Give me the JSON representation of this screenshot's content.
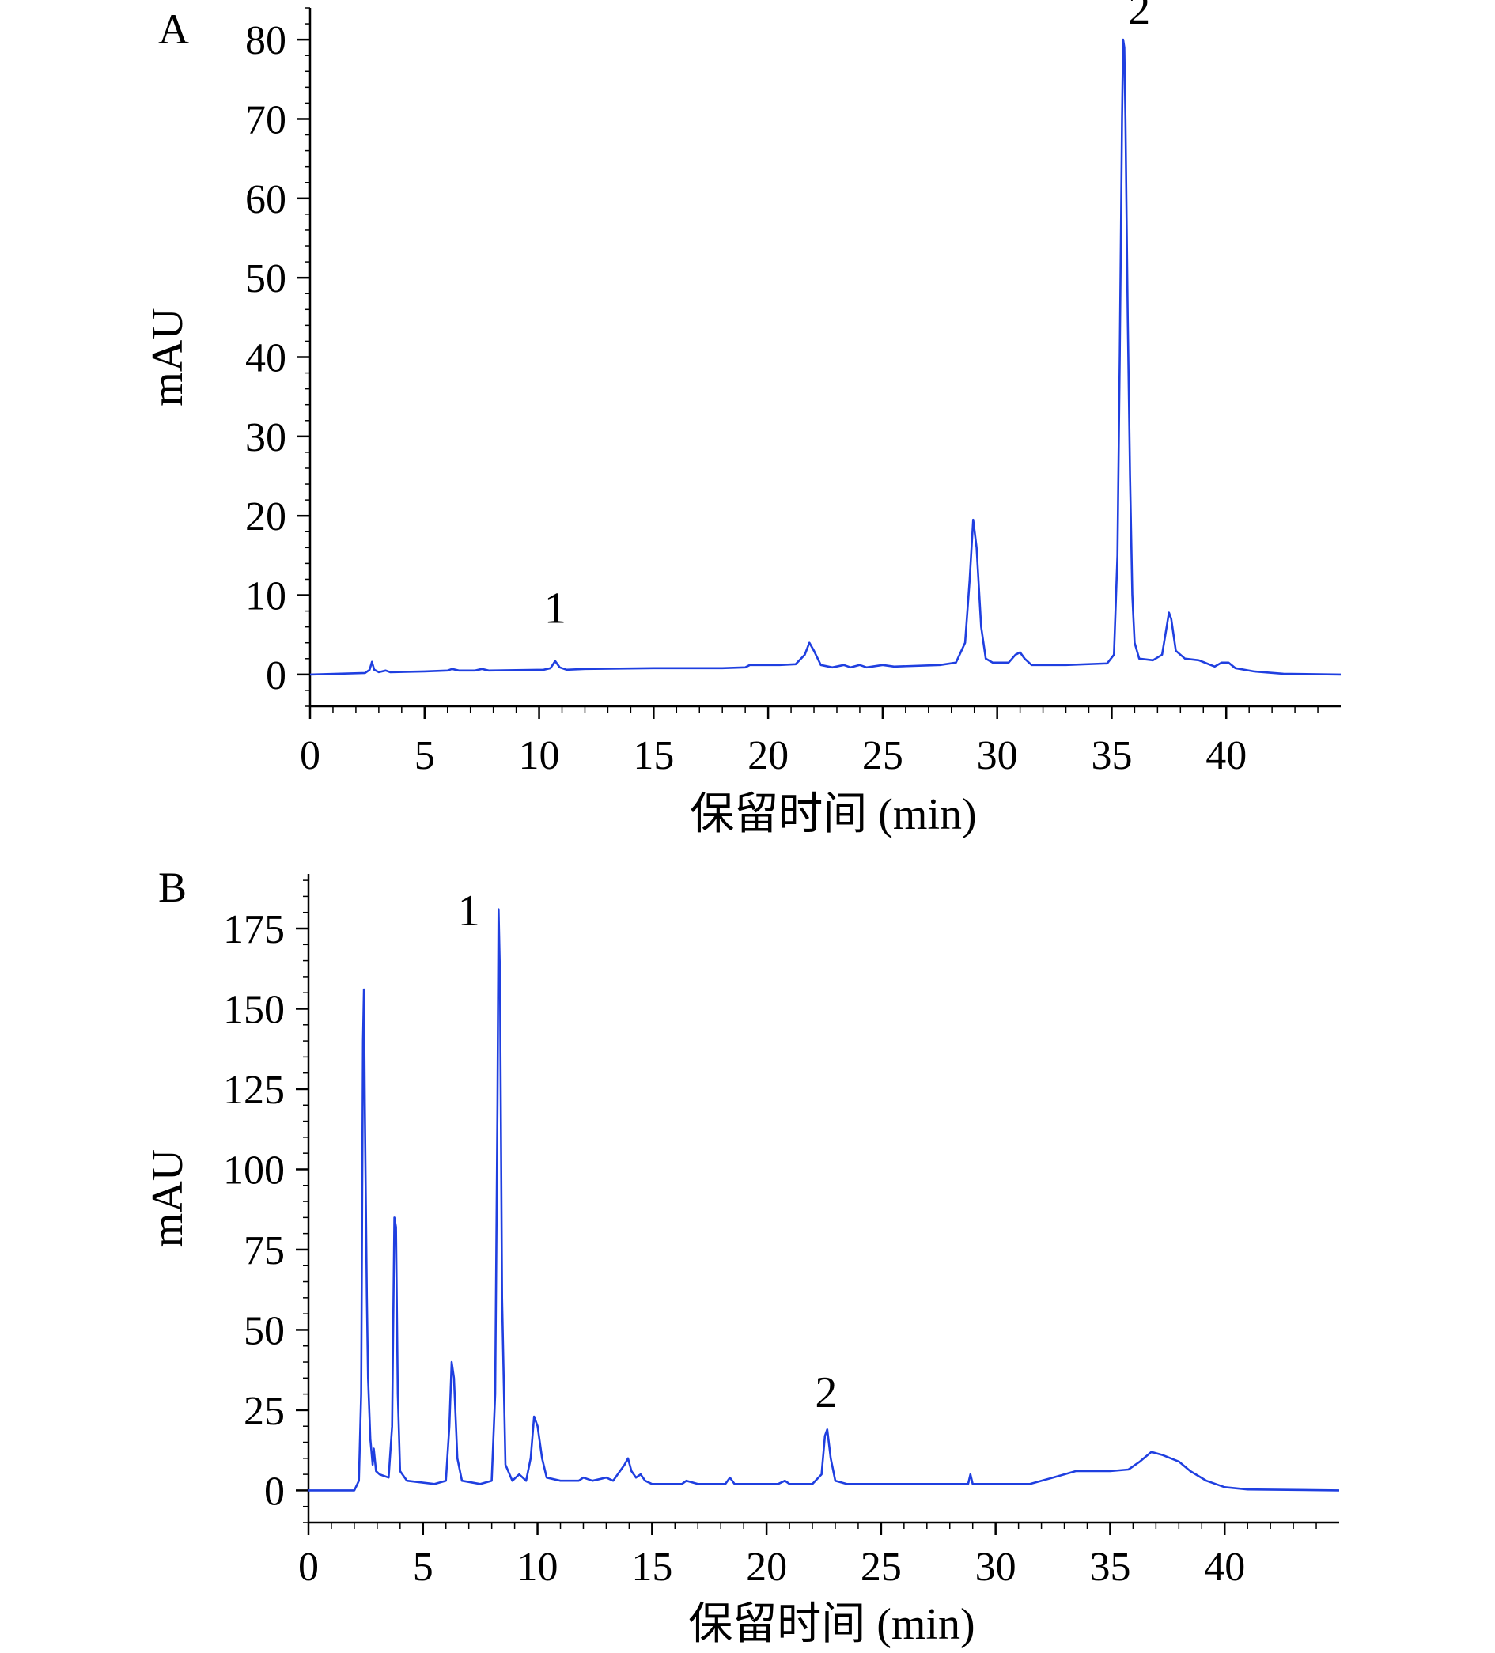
{
  "chart_data": [
    {
      "type": "line",
      "panel_label": "A",
      "xlabel": "保留时间 (min)",
      "ylabel": "mAU",
      "xlim": [
        0,
        45
      ],
      "ylim": [
        -4,
        84
      ],
      "xticks": [
        0,
        5,
        10,
        15,
        20,
        25,
        30,
        35,
        40
      ],
      "yticks": [
        0,
        10,
        20,
        30,
        40,
        50,
        60,
        70,
        80
      ],
      "grid": false,
      "peak_labels": [
        {
          "text": "1",
          "x": 10.7,
          "y": 6.5
        },
        {
          "text": "2",
          "x": 36.2,
          "y": 82
        }
      ],
      "series": [
        {
          "color": "#1f3fe0",
          "points": [
            [
              0,
              0
            ],
            [
              2.4,
              0.2
            ],
            [
              2.6,
              0.6
            ],
            [
              2.7,
              1.6
            ],
            [
              2.8,
              0.6
            ],
            [
              3.0,
              0.3
            ],
            [
              3.3,
              0.5
            ],
            [
              3.5,
              0.3
            ],
            [
              5,
              0.4
            ],
            [
              6.0,
              0.5
            ],
            [
              6.2,
              0.7
            ],
            [
              6.5,
              0.5
            ],
            [
              7.2,
              0.5
            ],
            [
              7.5,
              0.7
            ],
            [
              7.8,
              0.5
            ],
            [
              10.2,
              0.6
            ],
            [
              10.5,
              0.8
            ],
            [
              10.7,
              1.7
            ],
            [
              10.9,
              0.9
            ],
            [
              11.2,
              0.6
            ],
            [
              12,
              0.7
            ],
            [
              15,
              0.8
            ],
            [
              18,
              0.8
            ],
            [
              19,
              0.9
            ],
            [
              19.2,
              1.2
            ],
            [
              20.5,
              1.2
            ],
            [
              21.2,
              1.3
            ],
            [
              21.6,
              2.5
            ],
            [
              21.8,
              4.0
            ],
            [
              22.0,
              3.0
            ],
            [
              22.3,
              1.2
            ],
            [
              22.8,
              0.9
            ],
            [
              23.3,
              1.2
            ],
            [
              23.6,
              0.9
            ],
            [
              24.0,
              1.2
            ],
            [
              24.3,
              0.9
            ],
            [
              25.0,
              1.2
            ],
            [
              25.5,
              1.0
            ],
            [
              27.5,
              1.2
            ],
            [
              28.2,
              1.5
            ],
            [
              28.6,
              4.0
            ],
            [
              28.8,
              12
            ],
            [
              28.95,
              19.5
            ],
            [
              29.1,
              16
            ],
            [
              29.3,
              6
            ],
            [
              29.5,
              2
            ],
            [
              29.8,
              1.5
            ],
            [
              30.5,
              1.5
            ],
            [
              30.8,
              2.5
            ],
            [
              31.0,
              2.8
            ],
            [
              31.2,
              2.0
            ],
            [
              31.5,
              1.2
            ],
            [
              33,
              1.2
            ],
            [
              34.8,
              1.4
            ],
            [
              35.1,
              2.5
            ],
            [
              35.25,
              15
            ],
            [
              35.35,
              40
            ],
            [
              35.45,
              70
            ],
            [
              35.5,
              80
            ],
            [
              35.55,
              79
            ],
            [
              35.6,
              70
            ],
            [
              35.7,
              45
            ],
            [
              35.8,
              25
            ],
            [
              35.9,
              10
            ],
            [
              36.0,
              4
            ],
            [
              36.2,
              2.0
            ],
            [
              36.8,
              1.8
            ],
            [
              37.2,
              2.5
            ],
            [
              37.4,
              6
            ],
            [
              37.5,
              7.8
            ],
            [
              37.6,
              7
            ],
            [
              37.8,
              3
            ],
            [
              38.2,
              2
            ],
            [
              38.8,
              1.8
            ],
            [
              39.5,
              1.0
            ],
            [
              39.8,
              1.5
            ],
            [
              40.1,
              1.5
            ],
            [
              40.4,
              0.8
            ],
            [
              41.2,
              0.4
            ],
            [
              42.5,
              0.1
            ],
            [
              45,
              0.0
            ]
          ]
        }
      ]
    },
    {
      "type": "line",
      "panel_label": "B",
      "xlabel": "保留时间 (min)",
      "ylabel": "mAU",
      "xlim": [
        0,
        45
      ],
      "ylim": [
        -10,
        192
      ],
      "xticks": [
        0,
        5,
        10,
        15,
        20,
        25,
        30,
        35,
        40
      ],
      "yticks": [
        0,
        25,
        50,
        75,
        100,
        125,
        150,
        175
      ],
      "grid": false,
      "peak_labels": [
        {
          "text": "1",
          "x": 7.0,
          "y": 176
        },
        {
          "text": "2",
          "x": 22.6,
          "y": 26
        }
      ],
      "series": [
        {
          "color": "#1f3fe0",
          "points": [
            [
              0,
              0
            ],
            [
              2.0,
              0
            ],
            [
              2.2,
              3
            ],
            [
              2.3,
              30
            ],
            [
              2.38,
              140
            ],
            [
              2.42,
              156
            ],
            [
              2.46,
              120
            ],
            [
              2.55,
              60
            ],
            [
              2.6,
              35
            ],
            [
              2.7,
              16
            ],
            [
              2.8,
              8
            ],
            [
              2.85,
              13
            ],
            [
              2.95,
              6
            ],
            [
              3.1,
              5
            ],
            [
              3.5,
              4
            ],
            [
              3.65,
              20
            ],
            [
              3.75,
              85
            ],
            [
              3.82,
              82
            ],
            [
              3.9,
              30
            ],
            [
              4.0,
              6
            ],
            [
              4.3,
              3
            ],
            [
              5.5,
              2
            ],
            [
              6.0,
              3
            ],
            [
              6.15,
              20
            ],
            [
              6.25,
              40
            ],
            [
              6.35,
              35
            ],
            [
              6.5,
              10
            ],
            [
              6.7,
              3
            ],
            [
              7.5,
              2
            ],
            [
              8.0,
              3
            ],
            [
              8.15,
              30
            ],
            [
              8.25,
              120
            ],
            [
              8.3,
              181
            ],
            [
              8.36,
              160
            ],
            [
              8.45,
              60
            ],
            [
              8.6,
              8
            ],
            [
              8.9,
              3
            ],
            [
              9.2,
              5
            ],
            [
              9.5,
              3
            ],
            [
              9.7,
              10
            ],
            [
              9.85,
              23
            ],
            [
              10.0,
              20
            ],
            [
              10.2,
              10
            ],
            [
              10.4,
              4
            ],
            [
              11,
              3
            ],
            [
              11.8,
              3
            ],
            [
              12,
              4
            ],
            [
              12.4,
              3
            ],
            [
              13,
              4
            ],
            [
              13.3,
              3
            ],
            [
              13.8,
              8
            ],
            [
              13.95,
              10
            ],
            [
              14.1,
              6
            ],
            [
              14.3,
              4
            ],
            [
              14.5,
              5
            ],
            [
              14.7,
              3
            ],
            [
              15,
              2
            ],
            [
              16.3,
              2
            ],
            [
              16.5,
              3
            ],
            [
              17,
              2
            ],
            [
              18.2,
              2
            ],
            [
              18.4,
              4
            ],
            [
              18.6,
              2
            ],
            [
              20.5,
              2
            ],
            [
              20.8,
              3
            ],
            [
              21.0,
              2
            ],
            [
              22.0,
              2
            ],
            [
              22.4,
              5
            ],
            [
              22.55,
              17
            ],
            [
              22.65,
              19
            ],
            [
              22.8,
              10
            ],
            [
              23.0,
              3
            ],
            [
              23.5,
              2
            ],
            [
              25,
              2
            ],
            [
              27,
              2
            ],
            [
              28.8,
              2
            ],
            [
              28.9,
              5
            ],
            [
              29.0,
              2
            ],
            [
              30,
              2
            ],
            [
              31.5,
              2
            ],
            [
              32.0,
              3
            ],
            [
              32.5,
              4
            ],
            [
              33.5,
              6
            ],
            [
              35.0,
              6
            ],
            [
              35.8,
              6.5
            ],
            [
              36.3,
              9
            ],
            [
              36.8,
              12
            ],
            [
              37.3,
              11
            ],
            [
              38.0,
              9
            ],
            [
              38.5,
              6
            ],
            [
              39.2,
              3
            ],
            [
              40,
              1
            ],
            [
              41,
              0.3
            ],
            [
              45,
              0
            ]
          ]
        }
      ]
    }
  ]
}
